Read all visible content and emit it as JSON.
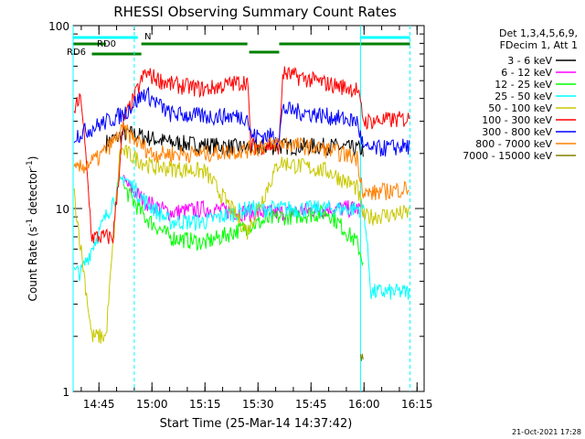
{
  "chart_data": {
    "type": "line",
    "title": "RHESSI Observing Summary Count Rates",
    "xlabel": "Start Time (25-Mar-14 14:37:42)",
    "ylabel": "Count Rate (s",
    "ylabel_sup": "-1",
    "ylabel_tail": "detector",
    "ylabel_sup2": "-1",
    "ylabel_close": ")",
    "yscale": "log",
    "ylim": [
      1,
      100
    ],
    "xlim_minutes": [
      "14:37:42",
      "16:17:00"
    ],
    "y_tick_labels": [
      "1",
      "10",
      "100"
    ],
    "x_tick_labels": [
      "14:45",
      "15:00",
      "15:15",
      "15:30",
      "15:45",
      "16:00",
      "16:15"
    ],
    "legend_header": [
      "Det 1,3,4,5,6,9,",
      "FDecim 1, Att 1"
    ],
    "footer_date": "21-Oct-2021 17:28",
    "flags": {
      "n_label": "N",
      "rd0_label": "RD0",
      "rd6_label": "RD6",
      "cyan_bars": [
        [
          "14:37:42",
          "14:56:00"
        ],
        [
          "15:59:00",
          "16:13:00"
        ]
      ],
      "green_high": [
        [
          "14:37:42",
          "14:47:00"
        ],
        [
          "14:57:00",
          "15:27:00"
        ],
        [
          "15:36:00",
          "16:13:00"
        ]
      ],
      "green_mid": [
        [
          "15:27:30",
          "15:36:00"
        ]
      ],
      "green_low": [
        [
          "14:43:00",
          "14:57:00"
        ]
      ],
      "dashed_lines": [
        "14:55:00",
        "16:13:00"
      ],
      "solid_cyan_lines": [
        "14:37:42",
        "15:59:00"
      ]
    },
    "series": [
      {
        "name": "3 - 6 keV",
        "color": "#000000",
        "segments": [
          [
            "14:47",
            23
          ],
          [
            "14:53",
            26
          ],
          [
            "15:05",
            23
          ],
          [
            "15:27",
            21.5
          ],
          [
            "15:36",
            22
          ],
          [
            "15:50",
            22
          ],
          [
            "16:00",
            21
          ]
        ],
        "start": "14:47",
        "end": "16:00"
      },
      {
        "name": "6 - 12 keV",
        "color": "#ff00ff",
        "segments": [
          [
            "14:52",
            14
          ],
          [
            "14:58",
            11
          ],
          [
            "15:05",
            9.5
          ],
          [
            "15:15",
            10
          ],
          [
            "15:27",
            9.5
          ],
          [
            "15:36",
            9.5
          ],
          [
            "15:50",
            10
          ],
          [
            "16:00",
            10
          ]
        ],
        "start": "14:52",
        "end": "16:00"
      },
      {
        "name": "12 - 25 keV",
        "color": "#00ff00",
        "segments": [
          [
            "14:52",
            13
          ],
          [
            "14:58",
            9
          ],
          [
            "15:05",
            7
          ],
          [
            "15:15",
            6.5
          ],
          [
            "15:27",
            8
          ],
          [
            "15:36",
            9
          ],
          [
            "15:50",
            9.5
          ],
          [
            "15:58",
            6.5
          ],
          [
            "16:00",
            5
          ]
        ],
        "start": "14:52",
        "end": "16:00"
      },
      {
        "name": "25 - 50 keV",
        "color": "#00ffff",
        "segments": [
          [
            "14:38",
            4.5
          ],
          [
            "14:40",
            4.5
          ],
          [
            "14:52",
            15
          ],
          [
            "14:58",
            11
          ],
          [
            "15:05",
            8.5
          ],
          [
            "15:15",
            8.5
          ],
          [
            "15:27",
            10
          ],
          [
            "15:36",
            10
          ],
          [
            "15:50",
            10
          ],
          [
            "16:00",
            10
          ],
          [
            "16:02",
            3.5
          ],
          [
            "16:13",
            3.5
          ]
        ],
        "start": "14:38",
        "end": "16:13"
      },
      {
        "name": "50 - 100 keV",
        "color": "#c8c800",
        "segments": [
          [
            "14:38",
            12
          ],
          [
            "14:43",
            2
          ],
          [
            "14:47",
            2
          ],
          [
            "14:51",
            21
          ],
          [
            "15:00",
            17
          ],
          [
            "15:15",
            16
          ],
          [
            "15:27",
            7.5
          ],
          [
            "15:36",
            18
          ],
          [
            "15:50",
            16
          ],
          [
            "15:58",
            13
          ],
          [
            "16:00",
            9
          ],
          [
            "16:13",
            9.5
          ]
        ],
        "start": "14:38",
        "end": "16:13"
      },
      {
        "name": "100 - 300 keV",
        "color": "#ff0000",
        "segments": [
          [
            "14:38",
            35
          ],
          [
            "14:40",
            40
          ],
          [
            "14:43",
            7
          ],
          [
            "14:49",
            7
          ],
          [
            "14:52",
            30
          ],
          [
            "14:58",
            55
          ],
          [
            "15:05",
            48
          ],
          [
            "15:15",
            45
          ],
          [
            "15:27",
            50
          ],
          [
            "15:28",
            22
          ],
          [
            "15:36",
            22
          ],
          [
            "15:37",
            55
          ],
          [
            "15:50",
            48
          ],
          [
            "15:58",
            45
          ],
          [
            "16:00",
            30
          ],
          [
            "16:13",
            31
          ]
        ],
        "start": "14:38",
        "end": "16:13"
      },
      {
        "name": "300 - 800 keV",
        "color": "#0000ff",
        "segments": [
          [
            "14:38",
            25
          ],
          [
            "14:52",
            33
          ],
          [
            "14:58",
            43
          ],
          [
            "15:05",
            33
          ],
          [
            "15:15",
            32
          ],
          [
            "15:27",
            32
          ],
          [
            "15:28",
            25
          ],
          [
            "15:36",
            25
          ],
          [
            "15:37",
            35
          ],
          [
            "15:50",
            32
          ],
          [
            "15:58",
            30
          ],
          [
            "16:00",
            21
          ],
          [
            "16:13",
            22
          ]
        ],
        "start": "14:38",
        "end": "16:13"
      },
      {
        "name": "800 - 7000 keV",
        "color": "#ff8000",
        "segments": [
          [
            "14:38",
            16
          ],
          [
            "14:45",
            19
          ],
          [
            "14:52",
            27
          ],
          [
            "15:00",
            20
          ],
          [
            "15:15",
            20
          ],
          [
            "15:27",
            21
          ],
          [
            "15:36",
            23
          ],
          [
            "15:50",
            21
          ],
          [
            "15:58",
            19
          ],
          [
            "16:00",
            12
          ],
          [
            "16:13",
            13
          ]
        ],
        "start": "14:38",
        "end": "16:13"
      },
      {
        "name": "7000 - 15000 keV",
        "color": "#808000",
        "segments": [
          [
            "15:59",
            1.5
          ],
          [
            "16:00",
            1.5
          ]
        ],
        "start": "15:59",
        "end": "16:00"
      }
    ]
  }
}
